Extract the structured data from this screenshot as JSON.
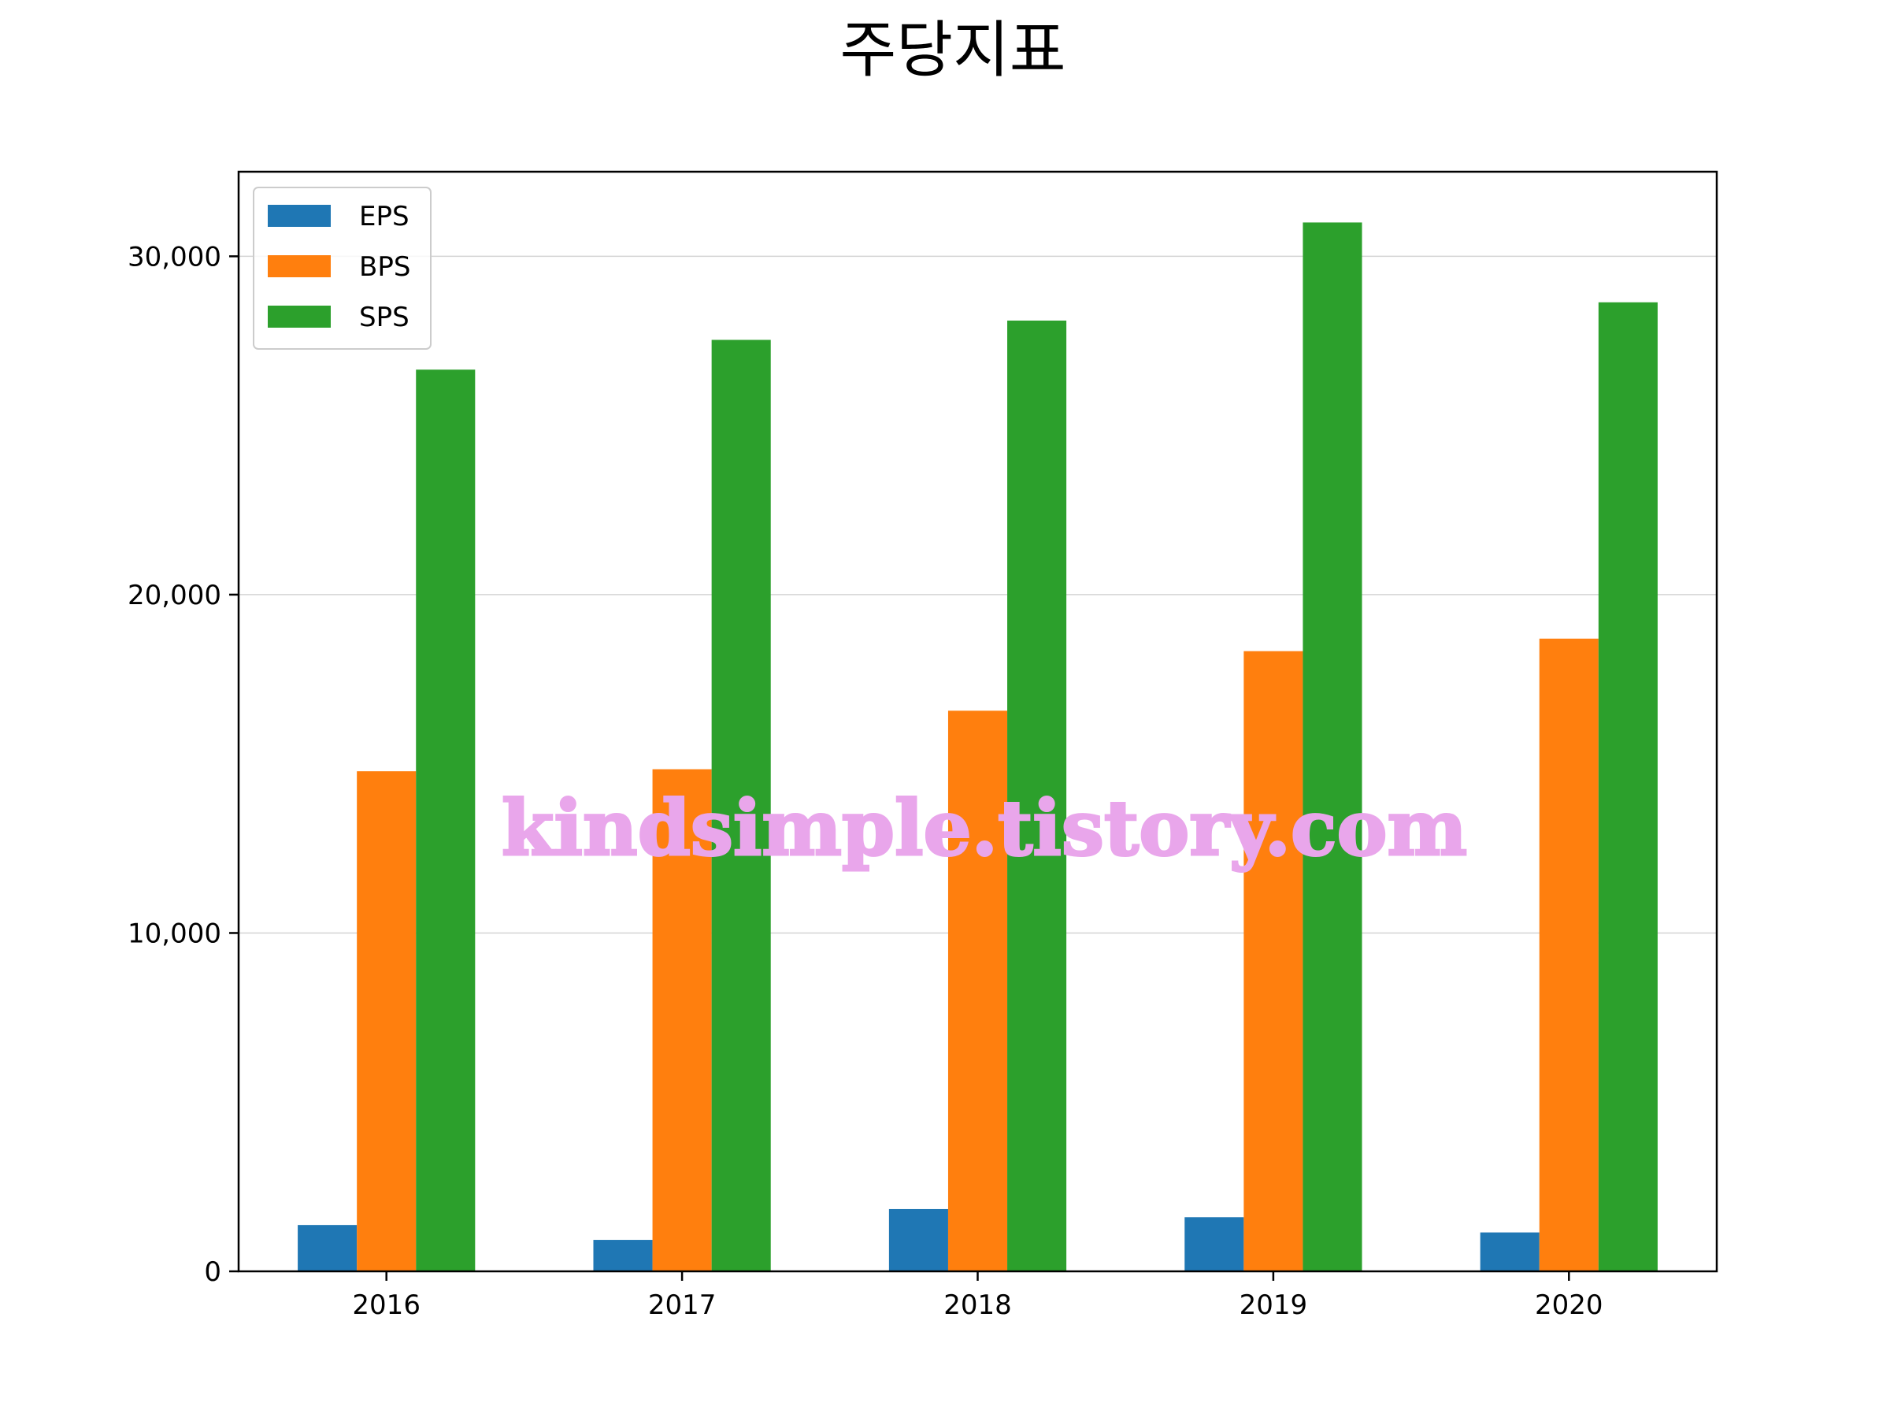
{
  "chart_data": {
    "type": "bar",
    "title": "주당지표",
    "xlabel": "",
    "ylabel": "",
    "categories": [
      "2016",
      "2017",
      "2018",
      "2019",
      "2020"
    ],
    "series": [
      {
        "name": "EPS",
        "color": "#1f77b4",
        "values": [
          1370,
          930,
          1840,
          1600,
          1150
        ]
      },
      {
        "name": "BPS",
        "color": "#ff7f0e",
        "values": [
          14780,
          14840,
          16570,
          18330,
          18700
        ]
      },
      {
        "name": "SPS",
        "color": "#2ca02c",
        "values": [
          26650,
          27530,
          28100,
          31000,
          28640
        ]
      }
    ],
    "ylim": [
      0,
      32500
    ],
    "yticks": [
      0,
      10000,
      20000,
      30000
    ],
    "ytick_labels": [
      "0",
      "10,000",
      "20,000",
      "30,000"
    ],
    "grid": "horizontal",
    "legend_position": "upper-left"
  },
  "watermark": "kindsimple.tistory.com"
}
